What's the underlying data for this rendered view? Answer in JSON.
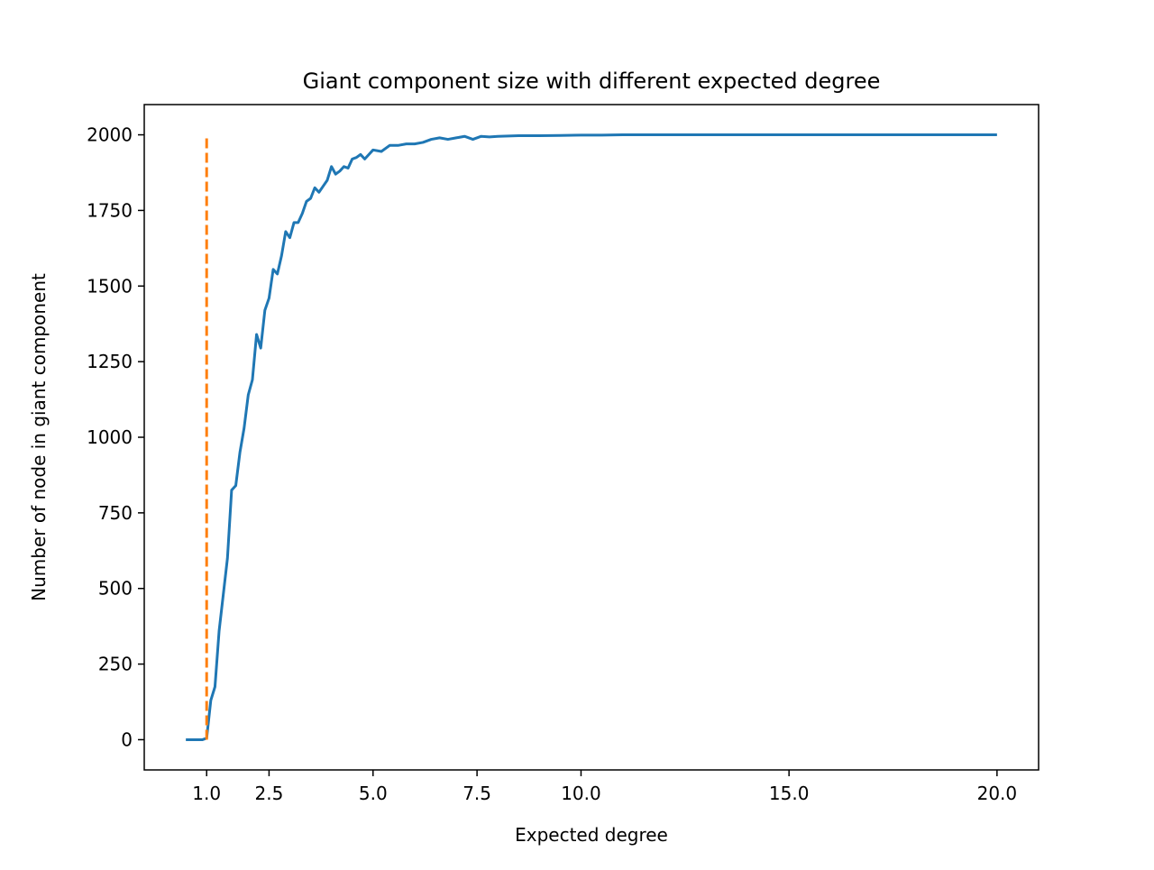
{
  "chart_data": {
    "type": "line",
    "title": "Giant component size with different expected degree",
    "xlabel": "Expected degree",
    "ylabel": "Number of node in giant component",
    "xlim": [
      -0.5,
      21.0
    ],
    "ylim": [
      -100,
      2100
    ],
    "xticks": [
      1.0,
      2.5,
      5.0,
      7.5,
      10.0,
      15.0,
      20.0
    ],
    "xtick_labels": [
      "1.0",
      "2.5",
      "5.0",
      "7.5",
      "10.0",
      "15.0",
      "20.0"
    ],
    "yticks": [
      0,
      250,
      500,
      750,
      1000,
      1250,
      1500,
      1750,
      2000
    ],
    "ytick_labels": [
      "0",
      "250",
      "500",
      "750",
      "1000",
      "1250",
      "1500",
      "1750",
      "2000"
    ],
    "grid": false,
    "series": [
      {
        "style": "solid",
        "color": "#1f77b4",
        "x": [
          0.5,
          0.6,
          0.7,
          0.8,
          0.9,
          1.0,
          1.1,
          1.2,
          1.3,
          1.4,
          1.5,
          1.6,
          1.7,
          1.8,
          1.9,
          2.0,
          2.1,
          2.2,
          2.3,
          2.4,
          2.5,
          2.6,
          2.7,
          2.8,
          2.9,
          3.0,
          3.1,
          3.2,
          3.3,
          3.4,
          3.5,
          3.6,
          3.7,
          3.8,
          3.9,
          4.0,
          4.1,
          4.2,
          4.3,
          4.4,
          4.5,
          4.6,
          4.7,
          4.8,
          4.9,
          5.0,
          5.2,
          5.4,
          5.6,
          5.8,
          6.0,
          6.2,
          6.4,
          6.6,
          6.8,
          7.0,
          7.2,
          7.4,
          7.6,
          7.8,
          8.0,
          8.5,
          9.0,
          9.5,
          10.0,
          10.5,
          11.0,
          12.0,
          13.0,
          14.0,
          15.0,
          16.0,
          17.0,
          18.0,
          19.0,
          20.0
        ],
        "y": [
          0,
          0,
          0,
          0,
          0,
          5,
          130,
          175,
          360,
          480,
          600,
          825,
          840,
          950,
          1030,
          1140,
          1190,
          1340,
          1295,
          1420,
          1460,
          1555,
          1540,
          1600,
          1680,
          1660,
          1710,
          1710,
          1740,
          1780,
          1790,
          1825,
          1810,
          1830,
          1850,
          1895,
          1870,
          1880,
          1895,
          1890,
          1920,
          1925,
          1935,
          1920,
          1935,
          1950,
          1945,
          1965,
          1965,
          1970,
          1970,
          1975,
          1985,
          1990,
          1985,
          1990,
          1995,
          1985,
          1995,
          1993,
          1995,
          1997,
          1997,
          1998,
          1999,
          1999,
          2000,
          2000,
          2000,
          2000,
          2000,
          2000,
          2000,
          2000,
          2000,
          2000
        ]
      },
      {
        "style": "dashed",
        "color": "#ff7f0e",
        "x": [
          1.0,
          1.0
        ],
        "y": [
          0,
          2000
        ]
      }
    ]
  }
}
